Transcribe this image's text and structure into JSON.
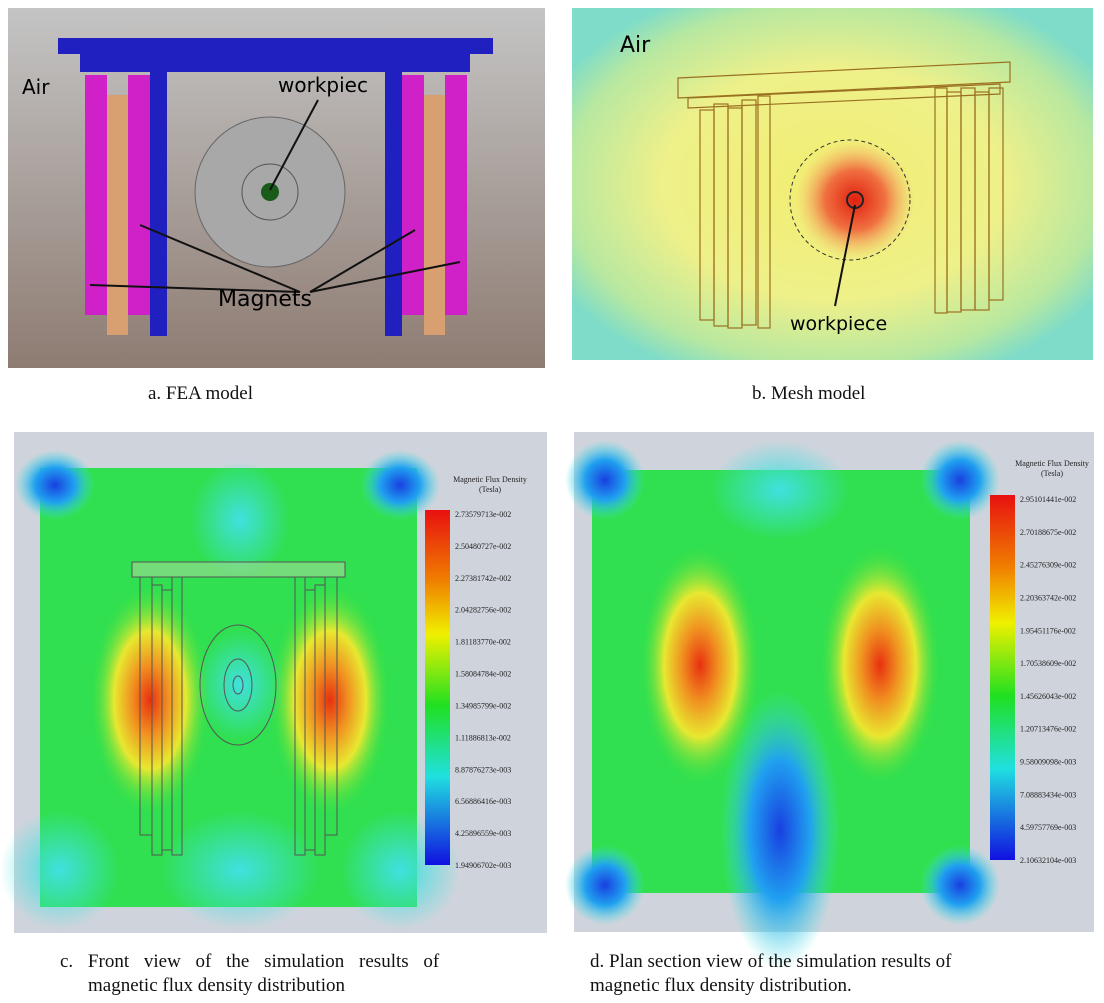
{
  "panels": [
    {
      "caption": "a.   FEA model",
      "labels": {
        "air": "Air",
        "workpiece": "workpiec",
        "magnets": "Magnets"
      }
    },
    {
      "caption": "b.   Mesh model",
      "labels": {
        "air": "Air",
        "workpiece": "workpiece"
      }
    },
    {
      "caption_lines": [
        "c.   Front view of the simulation results of",
        "magnetic flux density distribution"
      ],
      "legend": {
        "title": "Magnetic Flux Density",
        "unit": "(Tesla)",
        "values": [
          "2.73579713e-002",
          "2.50480727e-002",
          "2.27381742e-002",
          "2.04282756e-002",
          "1.81183770e-002",
          "1.58084784e-002",
          "1.34985799e-002",
          "1.11886813e-002",
          "8.87876273e-003",
          "6.56886416e-003",
          "4.25896559e-003",
          "1.94906702e-003"
        ]
      }
    },
    {
      "caption_lines": [
        "d. Plan section view of the simulation results of",
        "magnetic flux density distribution."
      ],
      "legend": {
        "title": "Magnetic Flux Density",
        "unit": "(Tesla)",
        "values": [
          "2.95101441e-002",
          "2.70188675e-002",
          "2.45276309e-002",
          "2.20363742e-002",
          "1.95451176e-002",
          "1.70538609e-002",
          "1.45626043e-002",
          "1.20713476e-002",
          "9.58009098e-003",
          "7.08883434e-003",
          "4.59757769e-003",
          "2.10632104e-003"
        ]
      }
    }
  ]
}
